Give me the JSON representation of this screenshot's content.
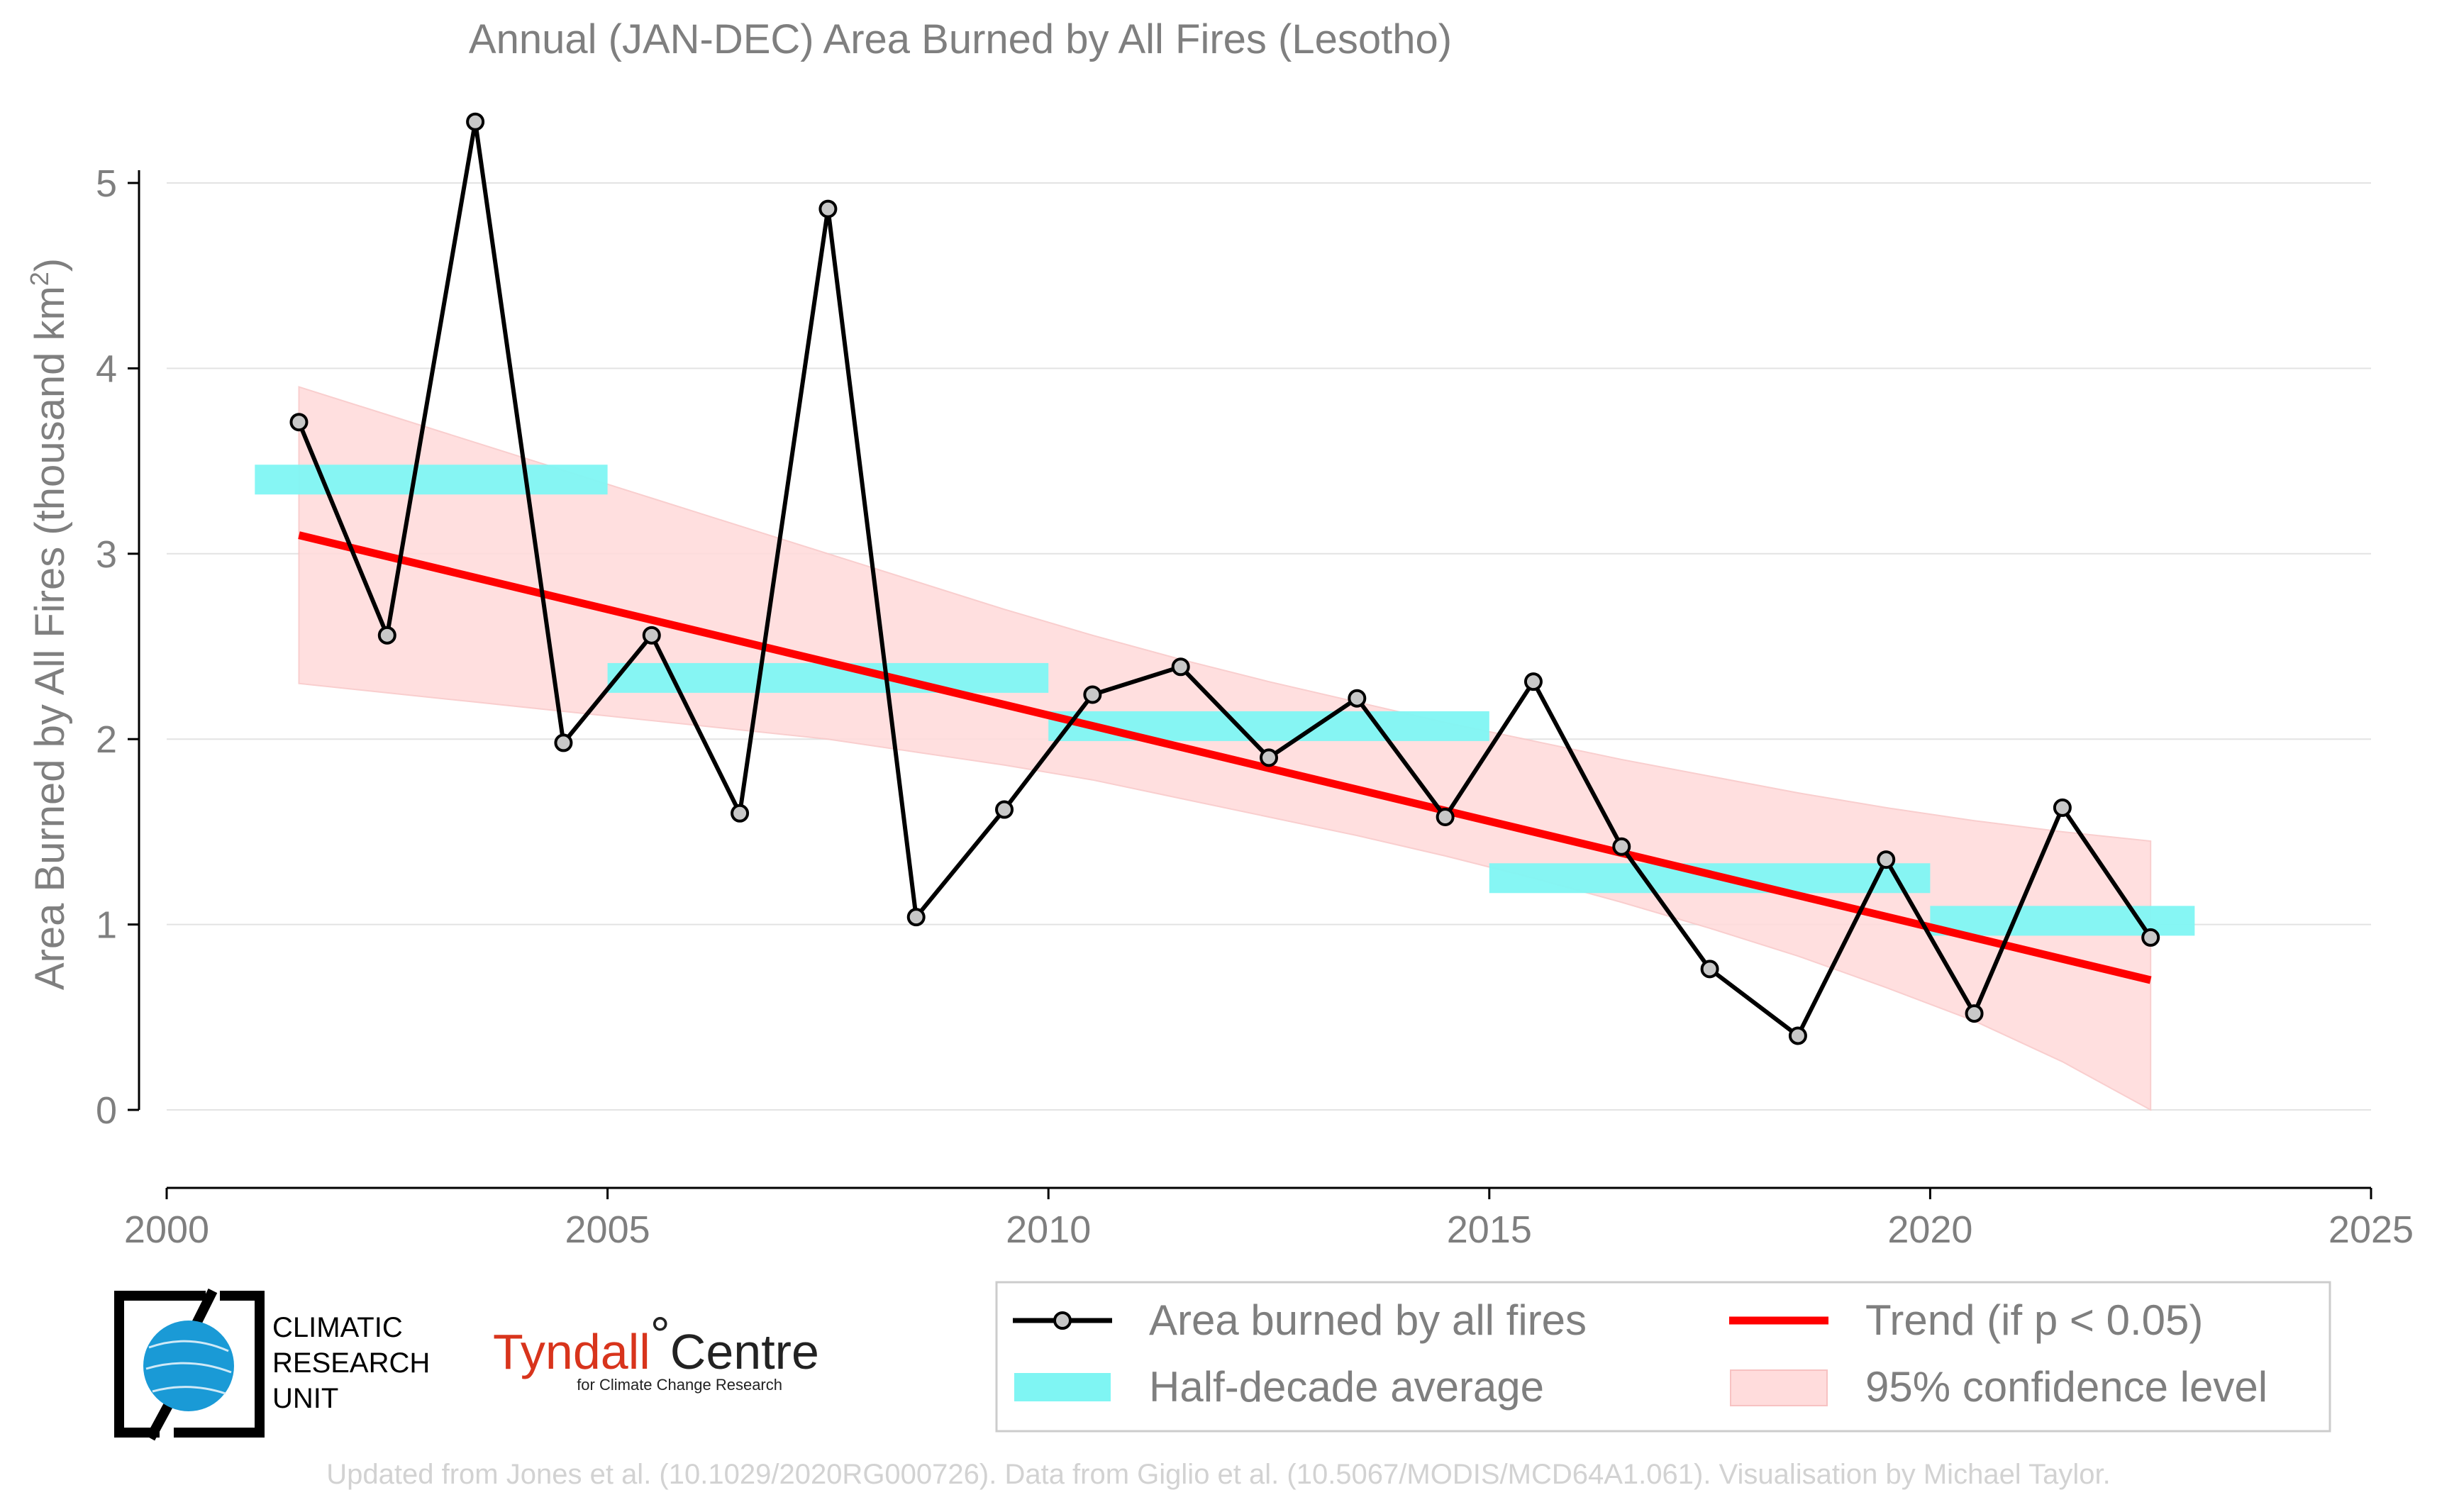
{
  "title": "Annual (JAN-DEC) Area Burned by All Fires (Lesotho)",
  "ylabel_main": "Area Burned by All Fires (thousand km",
  "ylabel_sup": "2",
  "ylabel_close": ")",
  "footer": "Updated from Jones et al. (10.1029/2020RG000726). Data from Giglio et al. (10.5067/MODIS/MCD64A1.061). Visualisation by Michael Taylor.",
  "logos": {
    "cru_line1": "CLIMATIC",
    "cru_line2": "RESEARCH",
    "cru_line3": "UNIT",
    "tyndall_a": "Tyndall",
    "tyndall_deg": "°",
    "tyndall_b": "Centre",
    "tyndall_sub": "for Climate Change Research"
  },
  "colors": {
    "line": "#000000",
    "marker_fill": "#c8c8c8",
    "trend": "#ff0000",
    "band": "#ffdcdc",
    "halfdecade": "#7ff5f3",
    "text": "#7f7f7f",
    "grid": "#e3e3e3"
  },
  "chart_data": {
    "type": "line",
    "xlim": [
      2000,
      2025
    ],
    "ylim": [
      0,
      5
    ],
    "xticks": [
      2000,
      2005,
      2010,
      2015,
      2020,
      2025
    ],
    "yticks": [
      0,
      1,
      2,
      3,
      4,
      5
    ],
    "grid": "horizontal",
    "legend_placement": "bottom",
    "series": [
      {
        "name": "Area burned by all fires",
        "x": [
          2001.5,
          2002.5,
          2003.5,
          2004.5,
          2005.5,
          2006.5,
          2007.5,
          2008.5,
          2009.5,
          2010.5,
          2011.5,
          2012.5,
          2013.5,
          2014.5,
          2015.5,
          2016.5,
          2017.5,
          2018.5,
          2019.5,
          2020.5,
          2021.5,
          2022.5
        ],
        "values": [
          3.71,
          2.56,
          5.33,
          1.98,
          2.56,
          1.6,
          4.86,
          1.04,
          1.62,
          2.24,
          2.39,
          1.9,
          2.22,
          1.58,
          2.31,
          1.42,
          0.76,
          0.4,
          1.35,
          0.52,
          1.63,
          0.93
        ]
      },
      {
        "name": "Half-decade average",
        "segments": [
          {
            "x0": 2001,
            "x1": 2005,
            "value": 3.4
          },
          {
            "x0": 2005,
            "x1": 2010,
            "value": 2.33
          },
          {
            "x0": 2010,
            "x1": 2015,
            "value": 2.07
          },
          {
            "x0": 2015,
            "x1": 2020,
            "value": 1.25
          },
          {
            "x0": 2020,
            "x1": 2023,
            "value": 1.02
          }
        ]
      },
      {
        "name": "Trend (if p < 0.05)",
        "x": [
          2001.5,
          2022.5
        ],
        "values": [
          3.1,
          0.7
        ]
      },
      {
        "name": "95% confidence level",
        "x": [
          2001.5,
          2002.5,
          2003.5,
          2004.5,
          2005.5,
          2006.5,
          2007.5,
          2008.5,
          2009.5,
          2010.5,
          2011.5,
          2012.5,
          2013.5,
          2014.5,
          2015.5,
          2016.5,
          2017.5,
          2018.5,
          2019.5,
          2020.5,
          2021.5,
          2022.5
        ],
        "upper": [
          3.9,
          3.75,
          3.6,
          3.45,
          3.3,
          3.15,
          3.0,
          2.85,
          2.7,
          2.56,
          2.43,
          2.31,
          2.2,
          2.09,
          1.99,
          1.89,
          1.8,
          1.71,
          1.63,
          1.56,
          1.5,
          1.45
        ],
        "lower": [
          2.3,
          2.25,
          2.2,
          2.15,
          2.1,
          2.05,
          2.0,
          1.93,
          1.86,
          1.78,
          1.68,
          1.58,
          1.48,
          1.37,
          1.25,
          1.12,
          0.98,
          0.83,
          0.66,
          0.48,
          0.26,
          0.0
        ]
      }
    ]
  }
}
